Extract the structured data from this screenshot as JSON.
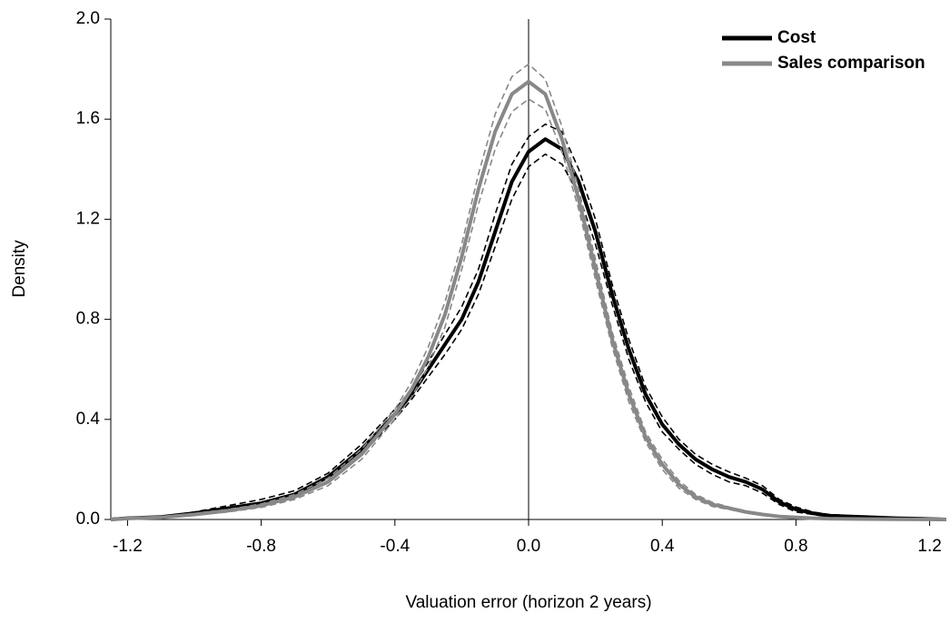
{
  "chart_data": {
    "type": "line",
    "x_label": "Valuation error (horizon 2 years)",
    "y_label": "Density",
    "x": [
      -1.25,
      -1.2,
      -1.1,
      -1.0,
      -0.9,
      -0.8,
      -0.7,
      -0.6,
      -0.5,
      -0.4,
      -0.35,
      -0.3,
      -0.25,
      -0.2,
      -0.15,
      -0.1,
      -0.05,
      0,
      0.05,
      0.1,
      0.15,
      0.2,
      0.25,
      0.3,
      0.35,
      0.4,
      0.45,
      0.5,
      0.55,
      0.6,
      0.65,
      0.7,
      0.75,
      0.8,
      0.85,
      0.9,
      1.0,
      1.1,
      1.2,
      1.25
    ],
    "series": [
      {
        "name": "Cost",
        "color": "#000000",
        "values": [
          0,
          0.005,
          0.01,
          0.025,
          0.045,
          0.065,
          0.1,
          0.17,
          0.28,
          0.42,
          0.5,
          0.6,
          0.7,
          0.8,
          0.95,
          1.15,
          1.35,
          1.47,
          1.52,
          1.48,
          1.35,
          1.15,
          0.9,
          0.68,
          0.5,
          0.38,
          0.3,
          0.24,
          0.2,
          0.17,
          0.15,
          0.12,
          0.07,
          0.04,
          0.025,
          0.015,
          0.01,
          0.005,
          0.002,
          0
        ],
        "upper": [
          0,
          0.006,
          0.012,
          0.03,
          0.055,
          0.08,
          0.115,
          0.185,
          0.3,
          0.44,
          0.52,
          0.63,
          0.74,
          0.85,
          1.0,
          1.22,
          1.42,
          1.53,
          1.58,
          1.55,
          1.4,
          1.2,
          0.94,
          0.72,
          0.53,
          0.41,
          0.32,
          0.26,
          0.22,
          0.19,
          0.165,
          0.135,
          0.08,
          0.05,
          0.03,
          0.02,
          0.012,
          0.006,
          0.003,
          0
        ],
        "lower": [
          0,
          0.004,
          0.008,
          0.02,
          0.035,
          0.05,
          0.085,
          0.155,
          0.26,
          0.4,
          0.48,
          0.57,
          0.66,
          0.76,
          0.9,
          1.09,
          1.28,
          1.41,
          1.46,
          1.42,
          1.3,
          1.1,
          0.86,
          0.64,
          0.47,
          0.35,
          0.28,
          0.22,
          0.18,
          0.15,
          0.135,
          0.105,
          0.06,
          0.03,
          0.02,
          0.01,
          0.008,
          0.004,
          0.001,
          0
        ]
      },
      {
        "name": "Sales comparison",
        "color": "#888888",
        "values": [
          0,
          0.004,
          0.008,
          0.02,
          0.035,
          0.055,
          0.09,
          0.15,
          0.26,
          0.42,
          0.52,
          0.65,
          0.82,
          1.05,
          1.32,
          1.55,
          1.7,
          1.75,
          1.7,
          1.52,
          1.28,
          1.0,
          0.72,
          0.5,
          0.33,
          0.22,
          0.14,
          0.09,
          0.06,
          0.045,
          0.03,
          0.02,
          0.012,
          0.008,
          0.005,
          0.003,
          0.002,
          0.001,
          0.0005,
          0
        ],
        "upper": [
          0,
          0.005,
          0.01,
          0.024,
          0.04,
          0.062,
          0.1,
          0.165,
          0.28,
          0.44,
          0.55,
          0.69,
          0.87,
          1.1,
          1.38,
          1.62,
          1.77,
          1.82,
          1.76,
          1.57,
          1.32,
          1.04,
          0.75,
          0.53,
          0.35,
          0.24,
          0.155,
          0.1,
          0.068,
          0.05,
          0.034,
          0.023,
          0.014,
          0.009,
          0.006,
          0.004,
          0.002,
          0.001,
          0.0005,
          0
        ],
        "lower": [
          0,
          0.003,
          0.006,
          0.016,
          0.03,
          0.048,
          0.08,
          0.135,
          0.24,
          0.4,
          0.49,
          0.61,
          0.77,
          1.0,
          1.26,
          1.48,
          1.63,
          1.68,
          1.64,
          1.47,
          1.24,
          0.96,
          0.69,
          0.47,
          0.31,
          0.2,
          0.125,
          0.08,
          0.052,
          0.04,
          0.026,
          0.017,
          0.01,
          0.007,
          0.004,
          0.002,
          0.0015,
          0.0008,
          0.0003,
          0
        ]
      }
    ],
    "xlim": [
      -1.25,
      1.25
    ],
    "xticks": [
      -1.2,
      -0.8,
      -0.4,
      {
        "value": 0,
        "label": "0.0"
      },
      0.4,
      0.8,
      1.2
    ],
    "ylim": [
      0,
      2
    ],
    "yticks": [
      {
        "value": 0,
        "label": "0.0"
      },
      0.4,
      0.8,
      1.2,
      1.6,
      {
        "value": 2,
        "label": "2.0"
      }
    ],
    "vline": 0,
    "legend": "top-right"
  }
}
